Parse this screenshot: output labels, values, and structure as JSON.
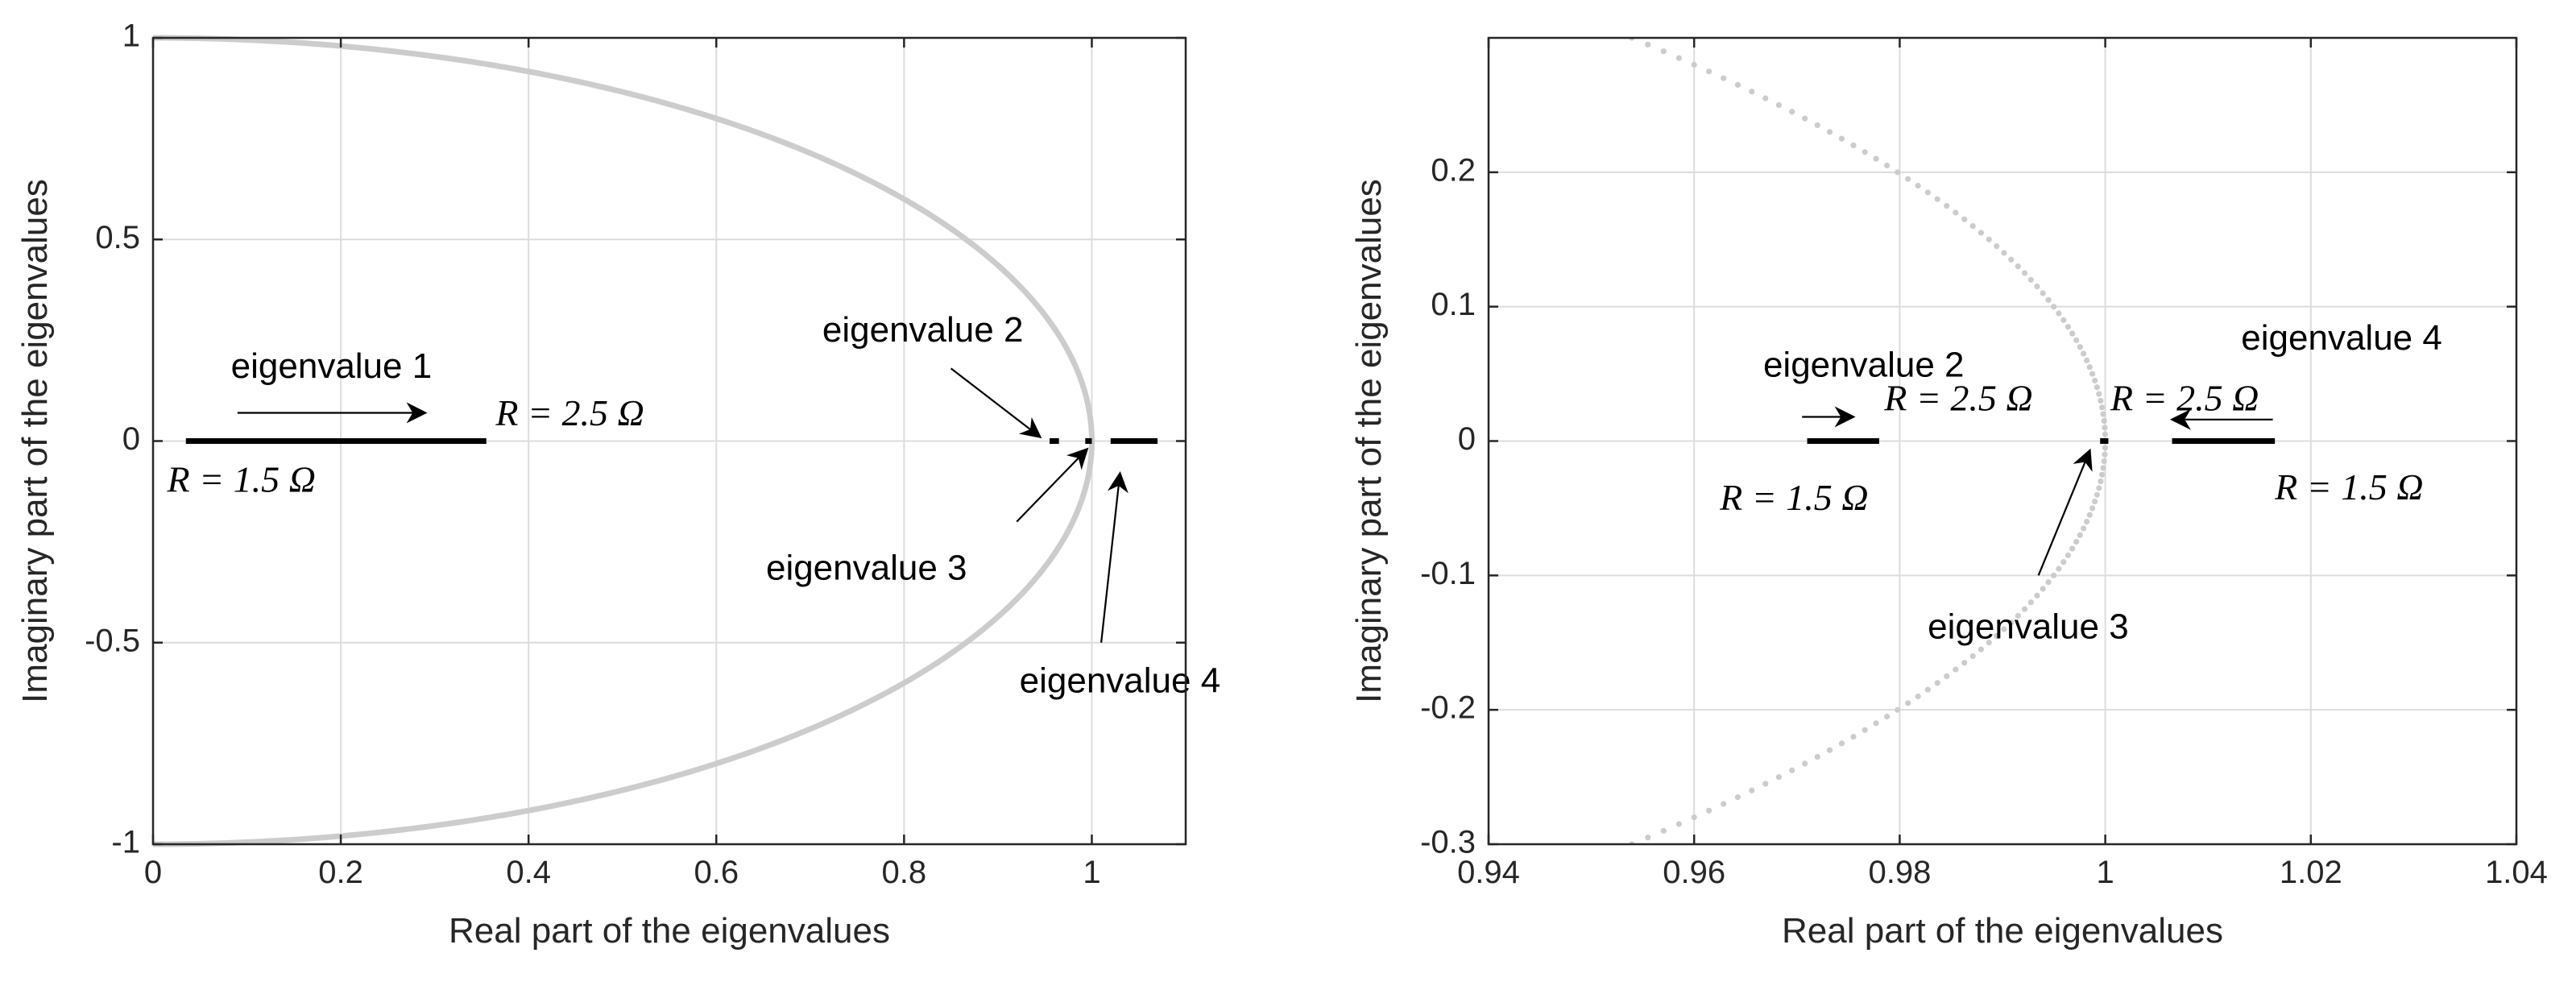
{
  "chart_data": [
    {
      "type": "line",
      "xlabel": "Real part of the eigenvalues",
      "ylabel": "Imaginary part of the eigenvalues",
      "xlim": [
        0,
        1.1
      ],
      "ylim": [
        -1,
        1
      ],
      "xticks": [
        "0",
        "0.2",
        "0.4",
        "0.6",
        "0.8",
        "1"
      ],
      "xtick_values": [
        0,
        0.2,
        0.4,
        0.6,
        0.8,
        1
      ],
      "yticks": [
        "-1",
        "-0.5",
        "0",
        "0.5",
        "1"
      ],
      "ytick_values": [
        -1,
        -0.5,
        0,
        0.5,
        1
      ],
      "grid": true,
      "curve": {
        "style": "solid",
        "color": "#cccccc",
        "description_relation": "x^2 + y^2 = 1, x >= 0"
      },
      "segments": [
        {
          "x": [
            0.035,
            0.355
          ],
          "y": [
            0,
            0
          ]
        },
        {
          "x": [
            0.955,
            0.965
          ],
          "y": [
            0,
            0
          ]
        },
        {
          "x": [
            0.993,
            1.0
          ],
          "y": [
            0,
            0
          ]
        },
        {
          "x": [
            1.02,
            1.07
          ],
          "y": [
            0,
            0
          ]
        }
      ],
      "annotations": [
        {
          "text": "eigenvalue 1",
          "x": 0.19,
          "y": 0.18
        },
        {
          "text": "eigenvalue 2",
          "x": 0.82,
          "y": 0.27
        },
        {
          "text": "eigenvalue 3",
          "x": 0.76,
          "y": -0.32
        },
        {
          "text": "eigenvalue 4",
          "x": 1.03,
          "y": -0.6
        }
      ],
      "arrows": [
        {
          "from": [
            0.09,
            0.07
          ],
          "to": [
            0.29,
            0.07
          ]
        },
        {
          "from": [
            0.85,
            0.18
          ],
          "to": [
            0.945,
            0.01
          ]
        },
        {
          "from": [
            0.92,
            -0.2
          ],
          "to": [
            0.995,
            -0.02
          ]
        },
        {
          "from": [
            1.01,
            -0.5
          ],
          "to": [
            1.03,
            -0.08
          ]
        }
      ],
      "r_labels": [
        {
          "text": "R = 1.5 Ω",
          "x": 0.015,
          "y": -0.105
        },
        {
          "text": "R = 2.5 Ω",
          "x": 0.365,
          "y": 0.06
        }
      ]
    },
    {
      "type": "scatter",
      "xlabel": "Real part of the eigenvalues",
      "ylabel": "Imaginary part of the eigenvalues",
      "xlim": [
        0.94,
        1.04
      ],
      "ylim": [
        -0.3,
        0.3
      ],
      "xticks": [
        "0.94",
        "0.96",
        "0.98",
        "1",
        "1.02",
        "1.04"
      ],
      "xtick_values": [
        0.94,
        0.96,
        0.98,
        1.0,
        1.02,
        1.04
      ],
      "yticks": [
        "-0.3",
        "-0.2",
        "-0.1",
        "0",
        "0.1",
        "0.2"
      ],
      "ytick_values": [
        -0.3,
        -0.2,
        -0.1,
        0,
        0.1,
        0.2
      ],
      "grid": true,
      "curve": {
        "style": "dotted",
        "color": "#cccccc",
        "description_relation": "x^2 + y^2 = 1"
      },
      "segments": [
        {
          "x": [
            0.971,
            0.978
          ],
          "y": [
            0,
            0
          ]
        },
        {
          "x": [
            0.9995,
            1.0003
          ],
          "y": [
            0,
            0
          ]
        },
        {
          "x": [
            1.0065,
            1.0165
          ],
          "y": [
            0,
            0
          ]
        }
      ],
      "annotations": [
        {
          "text": "eigenvalue 2",
          "x": 0.9765,
          "y": 0.055
        },
        {
          "text": "eigenvalue 3",
          "x": 0.9925,
          "y": -0.14
        },
        {
          "text": "eigenvalue 4",
          "x": 1.023,
          "y": 0.075
        }
      ],
      "arrows": [
        {
          "from": [
            0.9705,
            0.018
          ],
          "to": [
            0.9755,
            0.018
          ]
        },
        {
          "from": [
            0.9935,
            -0.1
          ],
          "to": [
            0.9985,
            -0.007
          ]
        },
        {
          "from": [
            1.0163,
            0.016
          ],
          "to": [
            1.0065,
            0.016
          ]
        }
      ],
      "r_labels": [
        {
          "text": "R = 1.5 Ω",
          "x": 0.9625,
          "y": -0.045
        },
        {
          "text": "R = 2.5 Ω",
          "x": 0.9785,
          "y": 0.029
        },
        {
          "text": "R = 2.5 Ω",
          "x": 1.0005,
          "y": 0.029
        },
        {
          "text": "R = 1.5 Ω",
          "x": 1.0165,
          "y": -0.037
        }
      ]
    }
  ]
}
